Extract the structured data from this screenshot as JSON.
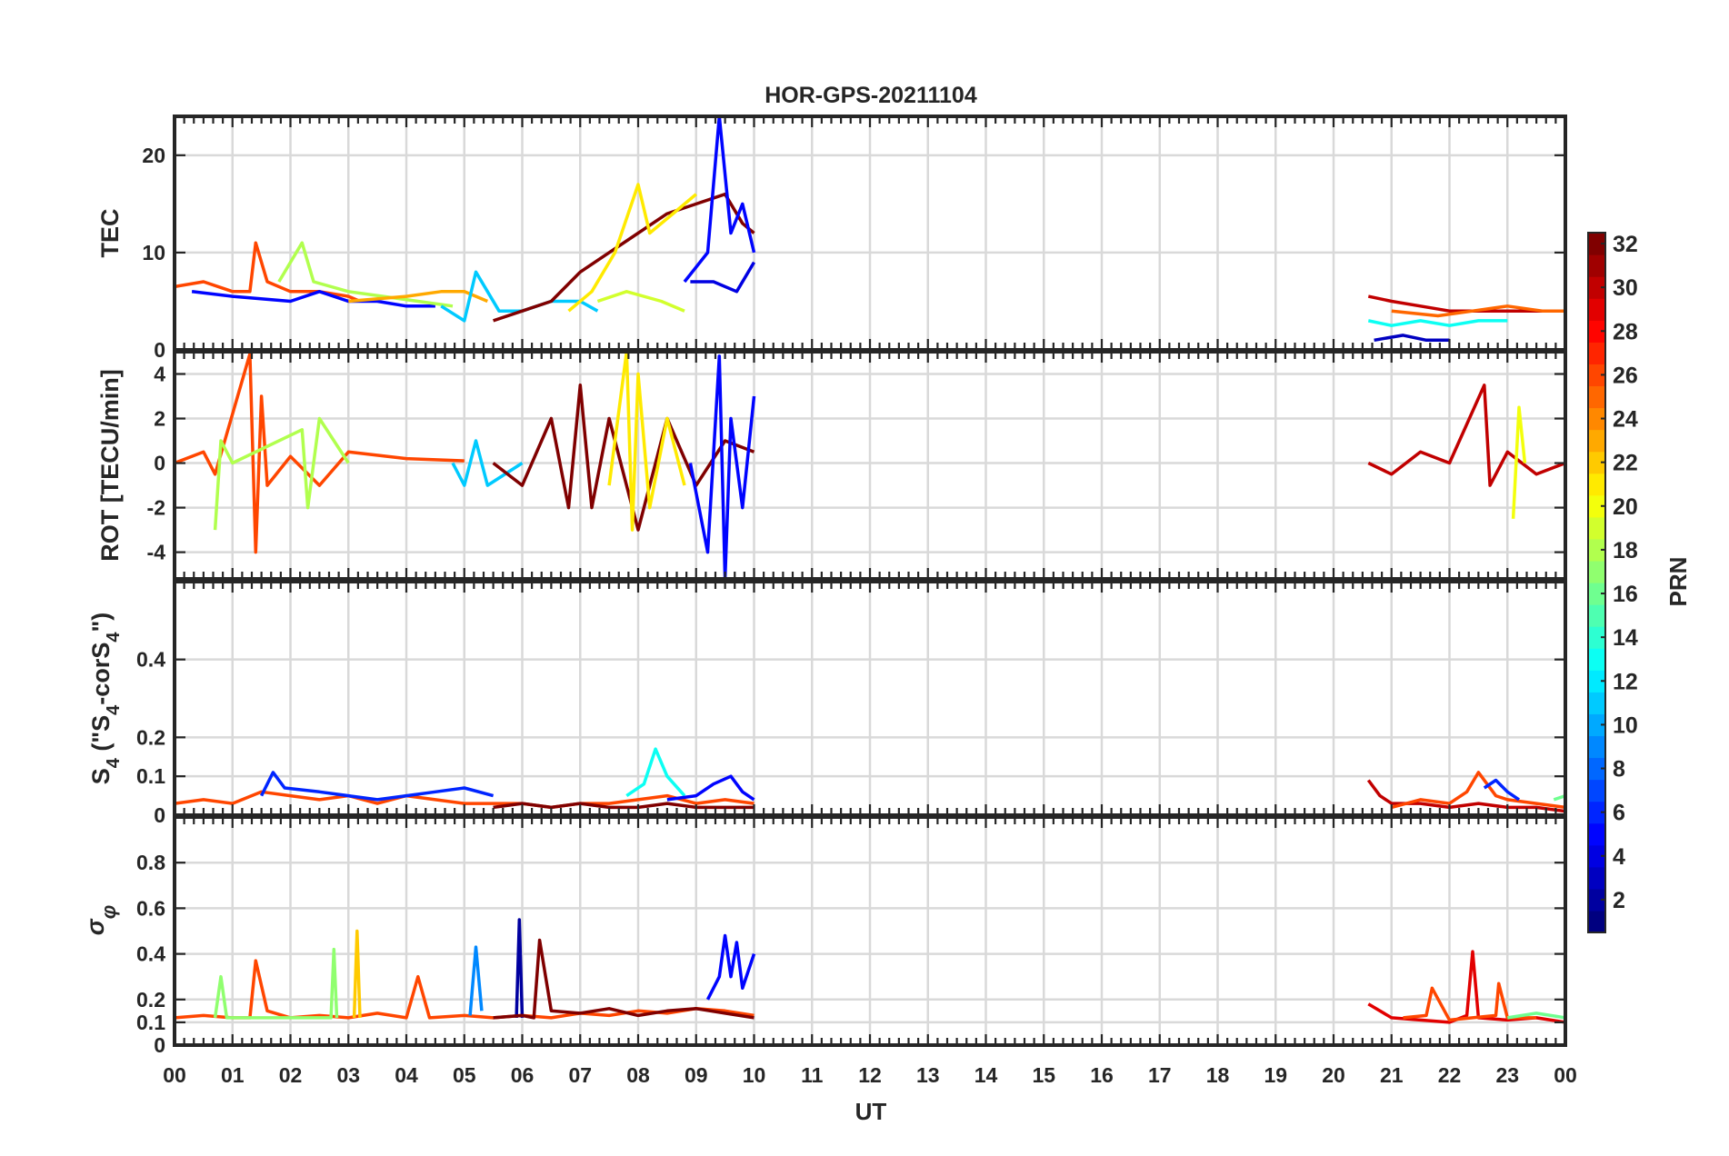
{
  "chart_data": {
    "type": "line",
    "title": "HOR-GPS-20211104",
    "xlabel": "UT",
    "x_ticks": [
      "00",
      "01",
      "02",
      "03",
      "04",
      "05",
      "06",
      "07",
      "08",
      "09",
      "10",
      "11",
      "12",
      "13",
      "14",
      "15",
      "16",
      "17",
      "18",
      "19",
      "20",
      "21",
      "22",
      "23",
      "00"
    ],
    "x_range_hours": [
      0,
      24
    ],
    "grid": true,
    "colorbar": {
      "label": "PRN",
      "range": [
        1,
        32
      ],
      "ticks": [
        "2",
        "4",
        "6",
        "8",
        "10",
        "12",
        "14",
        "16",
        "18",
        "20",
        "22",
        "24",
        "26",
        "28",
        "30",
        "32"
      ],
      "colormap": "jet",
      "placement": "right"
    },
    "panels": [
      {
        "id": "tec",
        "ylabel": "TEC",
        "ylim": [
          0,
          24
        ],
        "yticks": [
          "0",
          "10",
          "20"
        ],
        "ytick_values": [
          0,
          10,
          20
        ],
        "traces": [
          {
            "prn": 26,
            "x": [
              0,
              0.5,
              1,
              1.3,
              1.4,
              1.6,
              2,
              2.5,
              3,
              3.2
            ],
            "y": [
              6.5,
              7,
              6,
              6,
              11,
              7,
              6,
              6,
              5.5,
              5
            ]
          },
          {
            "prn": 5,
            "x": [
              0.3,
              1,
              2,
              2.5,
              3,
              3.5,
              4,
              4.5
            ],
            "y": [
              6,
              5.5,
              5,
              6,
              5,
              5,
              4.5,
              4.5
            ]
          },
          {
            "prn": 18,
            "x": [
              1.8,
              2.2,
              2.4,
              3,
              3.6,
              4.2,
              4.8
            ],
            "y": [
              7,
              11,
              7,
              6,
              5.5,
              5,
              4.5
            ]
          },
          {
            "prn": 23,
            "x": [
              3,
              4,
              4.6,
              5,
              5.4
            ],
            "y": [
              5,
              5.5,
              6,
              6,
              5
            ]
          },
          {
            "prn": 11,
            "x": [
              4.6,
              5,
              5.2,
              5.6,
              6,
              6.5,
              7,
              7.3
            ],
            "y": [
              4.5,
              3,
              8,
              4,
              4,
              5,
              5,
              4
            ]
          },
          {
            "prn": 32,
            "x": [
              5.5,
              6,
              6.5,
              7,
              7.5,
              8,
              8.5,
              9,
              9.5,
              9.8,
              10
            ],
            "y": [
              3,
              4,
              5,
              8,
              10,
              12,
              14,
              15,
              16,
              13,
              12
            ]
          },
          {
            "prn": 21,
            "x": [
              6.8,
              7.2,
              7.6,
              8,
              8.2,
              8.6,
              9
            ],
            "y": [
              4,
              6,
              10,
              17,
              12,
              14,
              16
            ]
          },
          {
            "prn": 19,
            "x": [
              7.3,
              7.8,
              8.4,
              8.8
            ],
            "y": [
              5,
              6,
              5,
              4
            ]
          },
          {
            "prn": 5,
            "x": [
              8.8,
              9.2,
              9.4,
              9.6,
              9.8,
              10
            ],
            "y": [
              7,
              10,
              24,
              12,
              15,
              10
            ]
          },
          {
            "prn": 4,
            "x": [
              8.9,
              9.3,
              9.7,
              10
            ],
            "y": [
              7,
              7,
              6,
              9
            ]
          },
          {
            "prn": 30,
            "x": [
              20.6,
              21,
              21.5,
              22,
              22.5,
              23,
              23.5,
              24
            ],
            "y": [
              5.5,
              5,
              4.5,
              4,
              4,
              4,
              4,
              4
            ]
          },
          {
            "prn": 13,
            "x": [
              20.6,
              21,
              21.5,
              22,
              22.5,
              23
            ],
            "y": [
              3,
              2.5,
              3,
              2.5,
              3,
              3
            ]
          },
          {
            "prn": 3,
            "x": [
              20.7,
              21.2,
              21.6,
              22
            ],
            "y": [
              1,
              1.5,
              1,
              1
            ]
          },
          {
            "prn": 25,
            "x": [
              21,
              21.8,
              22.4,
              23,
              23.6,
              24
            ],
            "y": [
              4,
              3.5,
              4,
              4.5,
              4,
              4
            ]
          }
        ]
      },
      {
        "id": "rot",
        "ylabel": "ROT [TECU/min]",
        "ylim": [
          -5.2,
          5
        ],
        "yticks": [
          "-4",
          "-2",
          "0",
          "2",
          "4"
        ],
        "ytick_values": [
          -4,
          -2,
          0,
          2,
          4
        ],
        "traces": [
          {
            "prn": 26,
            "x": [
              0,
              0.5,
              0.7,
              1.3,
              1.4,
              1.5,
              1.6,
              2,
              2.5,
              3,
              4,
              5
            ],
            "y": [
              0,
              0.5,
              -0.5,
              4.9,
              -4,
              3,
              -1,
              0.3,
              -1,
              0.5,
              0.2,
              0.1
            ]
          },
          {
            "prn": 18,
            "x": [
              0.7,
              0.8,
              1,
              2.2,
              2.3,
              2.5,
              3
            ],
            "y": [
              -3,
              1,
              0,
              1.5,
              -2,
              2,
              0
            ]
          },
          {
            "prn": 11,
            "x": [
              4.8,
              5,
              5.2,
              5.4,
              6
            ],
            "y": [
              0,
              -1,
              1,
              -1,
              0
            ]
          },
          {
            "prn": 32,
            "x": [
              5.5,
              6,
              6.5,
              6.8,
              7,
              7.2,
              7.5,
              8,
              8.5,
              9,
              9.5,
              10
            ],
            "y": [
              0,
              -1,
              2,
              -2,
              3.5,
              -2,
              2,
              -3,
              2,
              -1,
              1,
              0.5
            ]
          },
          {
            "prn": 21,
            "x": [
              7.5,
              7.8,
              7.9,
              8,
              8.2,
              8.5,
              8.8
            ],
            "y": [
              -1,
              5,
              -3,
              4,
              -2,
              2,
              -1
            ]
          },
          {
            "prn": 5,
            "x": [
              8.9,
              9.2,
              9.4,
              9.5,
              9.6,
              9.8,
              10
            ],
            "y": [
              0,
              -4,
              4.8,
              -5.2,
              2,
              -2,
              3
            ]
          },
          {
            "prn": 30,
            "x": [
              20.6,
              21,
              21.5,
              22,
              22.6,
              22.7,
              23,
              23.5,
              24
            ],
            "y": [
              0,
              -0.5,
              0.5,
              0,
              3.5,
              -1,
              0.5,
              -0.5,
              0
            ]
          },
          {
            "prn": 20,
            "x": [
              23.1,
              23.2,
              23.3
            ],
            "y": [
              -2.5,
              2.5,
              0
            ]
          }
        ]
      },
      {
        "id": "s4",
        "ylabel": "S4 (\"S4-corS4\")",
        "ylim": [
          0,
          0.6
        ],
        "yticks": [
          "0",
          "0.1",
          "0.2",
          "0.4"
        ],
        "ytick_values": [
          0,
          0.1,
          0.2,
          0.4
        ],
        "traces": [
          {
            "prn": 26,
            "x": [
              0,
              0.5,
              1,
              1.5,
              2,
              2.5,
              3,
              3.5,
              4,
              4.5,
              5,
              5.5,
              6,
              6.5,
              7,
              7.5,
              8,
              8.5,
              9,
              9.5,
              10
            ],
            "y": [
              0.03,
              0.04,
              0.03,
              0.06,
              0.05,
              0.04,
              0.05,
              0.03,
              0.05,
              0.04,
              0.03,
              0.03,
              0.03,
              0.02,
              0.03,
              0.03,
              0.04,
              0.05,
              0.03,
              0.04,
              0.03
            ]
          },
          {
            "prn": 6,
            "x": [
              1.5,
              1.7,
              1.9,
              2.5,
              3,
              3.5,
              4,
              4.5,
              5,
              5.5
            ],
            "y": [
              0.05,
              0.11,
              0.07,
              0.06,
              0.05,
              0.04,
              0.05,
              0.06,
              0.07,
              0.05
            ]
          },
          {
            "prn": 13,
            "x": [
              7.8,
              8.1,
              8.3,
              8.5,
              8.8
            ],
            "y": [
              0.05,
              0.08,
              0.17,
              0.1,
              0.05
            ]
          },
          {
            "prn": 5,
            "x": [
              8.5,
              9,
              9.3,
              9.6,
              9.8,
              10
            ],
            "y": [
              0.04,
              0.05,
              0.08,
              0.1,
              0.06,
              0.04
            ]
          },
          {
            "prn": 32,
            "x": [
              5.5,
              6,
              6.5,
              7,
              7.5,
              8,
              8.5,
              9,
              9.5,
              10
            ],
            "y": [
              0.02,
              0.03,
              0.02,
              0.03,
              0.02,
              0.02,
              0.03,
              0.02,
              0.02,
              0.02
            ]
          },
          {
            "prn": 30,
            "x": [
              20.6,
              20.8,
              21,
              21.5,
              22,
              22.5,
              23,
              23.5,
              24
            ],
            "y": [
              0.09,
              0.05,
              0.03,
              0.03,
              0.02,
              0.03,
              0.02,
              0.02,
              0.01
            ]
          },
          {
            "prn": 26,
            "x": [
              21,
              21.5,
              22,
              22.3,
              22.5,
              22.8,
              23,
              23.5,
              24
            ],
            "y": [
              0.02,
              0.04,
              0.03,
              0.06,
              0.11,
              0.05,
              0.04,
              0.03,
              0.02
            ]
          },
          {
            "prn": 6,
            "x": [
              22.6,
              22.8,
              23,
              23.2
            ],
            "y": [
              0.07,
              0.09,
              0.06,
              0.04
            ]
          },
          {
            "prn": 16,
            "x": [
              23.8,
              24
            ],
            "y": [
              0.04,
              0.05
            ]
          }
        ]
      },
      {
        "id": "sigma_phi",
        "ylabel": "σφ",
        "ylim": [
          0,
          1
        ],
        "yticks": [
          "0",
          "0.1",
          "0.2",
          "0.4",
          "0.6",
          "0.8"
        ],
        "ytick_values": [
          0,
          0.1,
          0.2,
          0.4,
          0.6,
          0.8
        ],
        "traces": [
          {
            "prn": 26,
            "x": [
              0,
              0.5,
              1,
              1.3,
              1.4,
              1.6,
              2,
              2.5,
              3,
              3.5,
              4,
              4.2,
              4.4,
              5,
              5.5,
              6,
              6.5,
              7,
              7.5,
              8,
              8.5,
              9,
              9.5,
              10
            ],
            "y": [
              0.12,
              0.13,
              0.12,
              0.12,
              0.37,
              0.15,
              0.12,
              0.13,
              0.12,
              0.14,
              0.12,
              0.3,
              0.12,
              0.13,
              0.12,
              0.13,
              0.12,
              0.14,
              0.13,
              0.15,
              0.14,
              0.16,
              0.15,
              0.13
            ]
          },
          {
            "prn": 17,
            "x": [
              0.7,
              0.8,
              0.9,
              2.7,
              2.75,
              2.8
            ],
            "y": [
              0.12,
              0.3,
              0.12,
              0.12,
              0.42,
              0.12
            ]
          },
          {
            "prn": 22,
            "x": [
              3.1,
              3.15,
              3.2
            ],
            "y": [
              0.12,
              0.5,
              0.12
            ]
          },
          {
            "prn": 9,
            "x": [
              5.1,
              5.2,
              5.3
            ],
            "y": [
              0.13,
              0.43,
              0.15
            ]
          },
          {
            "prn": 2,
            "x": [
              5.9,
              5.95,
              6
            ],
            "y": [
              0.12,
              0.55,
              0.12
            ]
          },
          {
            "prn": 32,
            "x": [
              5.5,
              6,
              6.2,
              6.3,
              6.5,
              7,
              7.5,
              8,
              8.5,
              9,
              9.5,
              10
            ],
            "y": [
              0.12,
              0.13,
              0.12,
              0.46,
              0.15,
              0.14,
              0.16,
              0.13,
              0.15,
              0.16,
              0.14,
              0.12
            ]
          },
          {
            "prn": 5,
            "x": [
              9.2,
              9.4,
              9.5,
              9.6,
              9.7,
              9.8,
              10
            ],
            "y": [
              0.2,
              0.3,
              0.48,
              0.3,
              0.45,
              0.25,
              0.4
            ]
          },
          {
            "prn": 29,
            "x": [
              20.6,
              21,
              21.5,
              22,
              22.3,
              22.4,
              22.5,
              23,
              23.5,
              24
            ],
            "y": [
              0.18,
              0.12,
              0.11,
              0.1,
              0.13,
              0.41,
              0.12,
              0.11,
              0.12,
              0.1
            ]
          },
          {
            "prn": 26,
            "x": [
              21.2,
              21.6,
              21.7,
              22,
              22.8,
              22.85,
              23,
              23.5
            ],
            "y": [
              0.12,
              0.13,
              0.25,
              0.11,
              0.13,
              0.27,
              0.12,
              0.12
            ]
          },
          {
            "prn": 16,
            "x": [
              23,
              23.5,
              24
            ],
            "y": [
              0.12,
              0.14,
              0.12
            ]
          }
        ]
      }
    ]
  }
}
